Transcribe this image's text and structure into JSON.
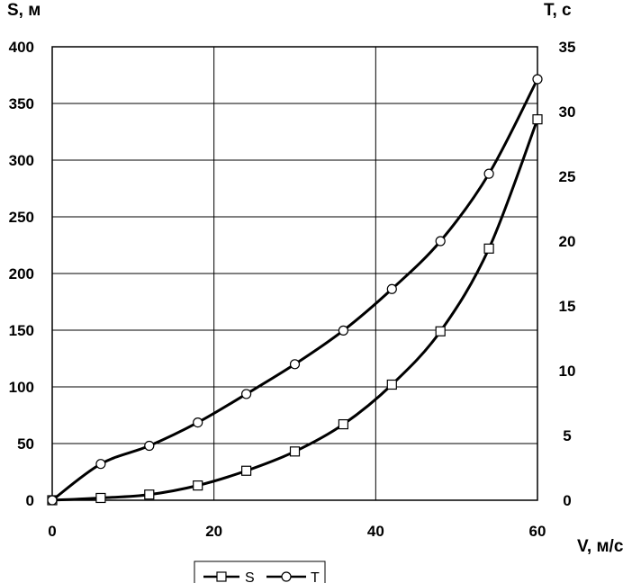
{
  "chart_data": {
    "type": "line",
    "title": "",
    "xlabel": "V, м/с",
    "ylabel": "S, м",
    "y2label": "T, с",
    "xlim": [
      0,
      60
    ],
    "ylim": [
      0,
      400
    ],
    "y2lim": [
      0,
      35
    ],
    "x_ticks": [
      "0",
      "20",
      "40",
      "60"
    ],
    "y_ticks": [
      "0",
      "50",
      "100",
      "150",
      "200",
      "250",
      "300",
      "350",
      "400"
    ],
    "y2_ticks": [
      "0",
      "5",
      "10",
      "15",
      "20",
      "25",
      "30",
      "35"
    ],
    "grid": true,
    "legend_position": "bottom",
    "x": [
      0,
      6,
      12,
      18,
      24,
      30,
      36,
      42,
      48,
      54,
      60
    ],
    "series": [
      {
        "name": "S",
        "axis": "left",
        "marker": "square",
        "values": [
          0,
          2,
          5,
          13,
          26,
          43,
          67,
          102,
          149,
          222,
          336
        ]
      },
      {
        "name": "T",
        "axis": "right",
        "marker": "circle",
        "values": [
          0,
          2.8,
          4.2,
          6.0,
          8.2,
          10.5,
          13.1,
          16.3,
          20.0,
          25.2,
          32.5
        ]
      }
    ],
    "colors": {
      "line": "#000000",
      "grid": "#000000",
      "marker_fill": "#ffffff"
    }
  }
}
